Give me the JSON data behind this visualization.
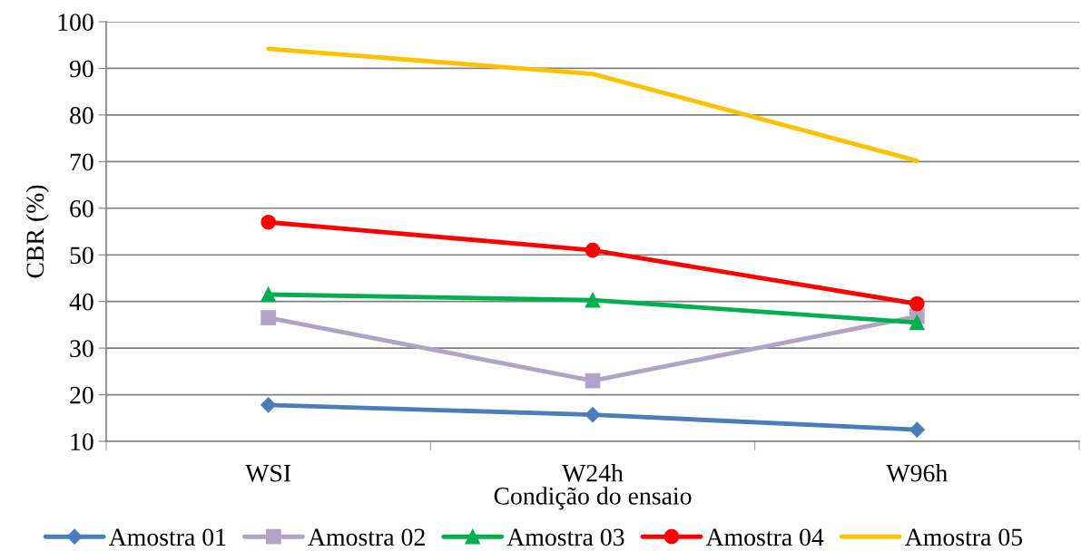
{
  "chart_data": {
    "type": "line",
    "xlabel": "Condição do ensaio",
    "ylabel": "CBR (%)",
    "categories": [
      "WSI",
      "W24h",
      "W96h"
    ],
    "series": [
      {
        "name": "Amostra 01",
        "color": "#4a7ebb",
        "marker": "diamond",
        "values": [
          17.8,
          15.7,
          12.5
        ]
      },
      {
        "name": "Amostra 02",
        "color": "#b3a2c7",
        "marker": "square",
        "values": [
          36.5,
          23.0,
          36.8
        ]
      },
      {
        "name": "Amostra 03",
        "color": "#00b050",
        "marker": "triangle",
        "values": [
          41.5,
          40.3,
          35.5
        ]
      },
      {
        "name": "Amostra 04",
        "color": "#ff0000",
        "marker": "circle",
        "values": [
          57.0,
          51.0,
          39.5
        ]
      },
      {
        "name": "Amostra 05",
        "color": "#ffc000",
        "marker": "none",
        "values": [
          94.2,
          88.8,
          70.2
        ]
      }
    ],
    "ylim": [
      10,
      100
    ],
    "yticks": [
      10,
      20,
      30,
      40,
      50,
      60,
      70,
      80,
      90,
      100
    ],
    "grid": "y",
    "legend": "bottom",
    "line_style": "solid"
  }
}
